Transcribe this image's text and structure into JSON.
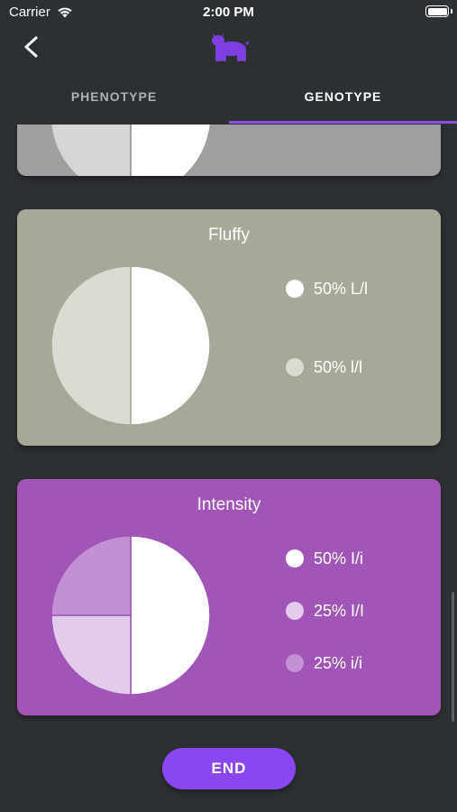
{
  "status_bar": {
    "carrier": "Carrier",
    "time": "2:00 PM"
  },
  "header": {
    "logo_icon": "french-bulldog-icon",
    "back_icon": "chevron-left-icon",
    "logo_color": "#7f3fe0"
  },
  "tabs": [
    {
      "label": "PHENOTYPE",
      "active": false
    },
    {
      "label": "GENOTYPE",
      "active": true
    }
  ],
  "cards": [
    {
      "title": "Fluffy",
      "background": "#a8a898",
      "slices": [
        {
          "label": "50% L/l",
          "percent": 50,
          "color": "#ffffff"
        },
        {
          "label": "50% l/l",
          "percent": 50,
          "color": "#dcdbd3"
        }
      ]
    },
    {
      "title": "Intensity",
      "background": "#a155b7",
      "slices": [
        {
          "label": "50% I/i",
          "percent": 50,
          "color": "#ffffff"
        },
        {
          "label": "25% I/I",
          "percent": 25,
          "color": "#e3cbeb"
        },
        {
          "label": "25% i/i",
          "percent": 25,
          "color": "#c490d4"
        }
      ]
    }
  ],
  "end_button": {
    "label": "END",
    "color": "#8a46f1"
  }
}
